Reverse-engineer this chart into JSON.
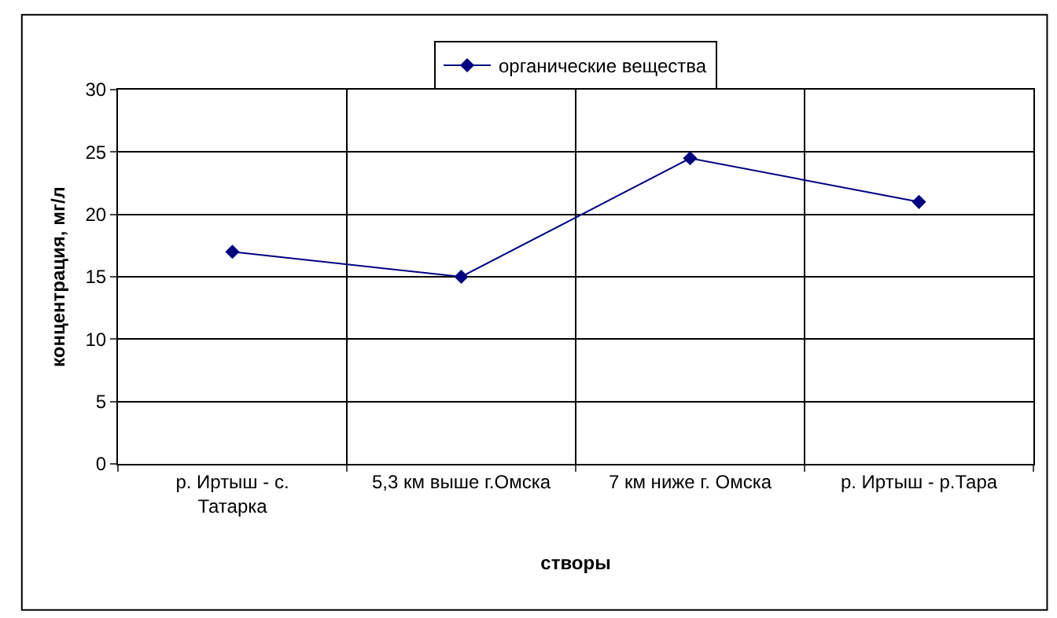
{
  "chart_data": {
    "type": "line",
    "xlabel": "створы",
    "ylabel": "концентрация, мг/л",
    "categories": [
      "р. Иртыш - с. Татарка",
      "5,3 км выше г.Омска",
      "7 км ниже г. Омска",
      "р. Иртыш - р.Тара"
    ],
    "series": [
      {
        "name": "органические вещества",
        "color": "#000080",
        "values": [
          17,
          15,
          24.5,
          21
        ]
      }
    ],
    "ylim": [
      0,
      30
    ],
    "yticks": [
      0,
      5,
      10,
      15,
      20,
      25,
      30
    ],
    "grid": true,
    "legend": "top",
    "marker": "diamond",
    "line_style": "solid"
  }
}
